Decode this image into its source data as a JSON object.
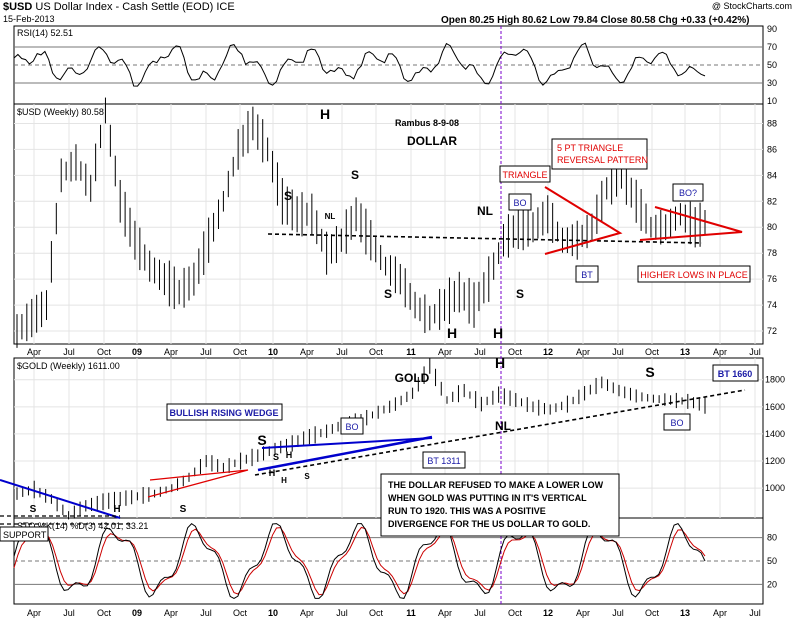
{
  "header": {
    "symbol": "$USD",
    "name": "US Dollar Index - Cash Settle (EOD)",
    "exchange": "ICE",
    "date": "15-Feb-2013",
    "copyright": "@ StockCharts.com",
    "quote": "Open 80.25   High 80.62   Low 79.84   Close 80.58   Chg +0.33 (+0.42%)"
  },
  "chart_data": [
    {
      "type": "line",
      "title": "RSI(14) 52.51",
      "y_ticks": [
        10,
        30,
        50,
        70,
        90
      ],
      "ylim": [
        10,
        90
      ],
      "levels": [
        30,
        50,
        70
      ],
      "series": [
        {
          "name": "RSI(14)",
          "last": 52.51
        }
      ]
    },
    {
      "type": "bar",
      "title": "$USD (Weekly) 80.58",
      "y_ticks": [
        72,
        74,
        76,
        78,
        80,
        82,
        84,
        86,
        88
      ],
      "ylim": [
        71,
        89.5
      ],
      "x_ticks": [
        "Apr",
        "Jul",
        "Oct",
        "09",
        "Apr",
        "Jul",
        "Oct",
        "10",
        "Apr",
        "Jul",
        "Oct",
        "11",
        "Apr",
        "Jul",
        "Oct",
        "12",
        "Apr",
        "Jul",
        "Oct",
        "13",
        "Apr",
        "Jul"
      ],
      "series": [
        {
          "name": "$USD (Weekly)",
          "last": 80.58,
          "approx_path": [
            [
              0,
              72
            ],
            [
              3,
              73
            ],
            [
              6,
              74
            ],
            [
              9,
              84
            ],
            [
              12,
              85
            ],
            [
              15,
              83
            ],
            [
              18,
              89
            ],
            [
              21,
              82
            ],
            [
              24,
              79
            ],
            [
              27,
              77
            ],
            [
              30,
              76
            ],
            [
              33,
              75
            ],
            [
              36,
              76
            ],
            [
              39,
              79
            ],
            [
              42,
              82
            ],
            [
              45,
              86
            ],
            [
              48,
              88
            ],
            [
              51,
              86
            ],
            [
              54,
              82
            ],
            [
              57,
              81
            ],
            [
              60,
              81
            ],
            [
              63,
              78
            ],
            [
              66,
              79
            ],
            [
              69,
              81
            ],
            [
              72,
              79
            ],
            [
              75,
              77
            ],
            [
              78,
              76
            ],
            [
              81,
              74
            ],
            [
              84,
              73
            ],
            [
              87,
              74
            ],
            [
              90,
              75
            ],
            [
              93,
              74
            ],
            [
              96,
              76
            ],
            [
              99,
              79
            ],
            [
              102,
              80
            ],
            [
              105,
              80
            ],
            [
              108,
              81
            ],
            [
              111,
              79
            ],
            [
              114,
              79
            ],
            [
              117,
              80
            ],
            [
              120,
              83
            ],
            [
              123,
              84
            ],
            [
              126,
              82
            ],
            [
              129,
              80
            ],
            [
              132,
              80
            ],
            [
              135,
              81
            ],
            [
              138,
              80
            ],
            [
              141,
              80.58
            ]
          ]
        }
      ],
      "annotations": [
        "Rambus 8-9-08",
        "DOLLAR",
        "TRIANGLE",
        "5 PT TRIANGLE",
        "REVERSAL PATTERN",
        "BO",
        "BO?",
        "BT",
        "HIGHER LOWS IN PLACE",
        "NL",
        "NL",
        "S",
        "S",
        "S",
        "S",
        "S",
        "H",
        "H",
        "H"
      ]
    },
    {
      "type": "bar",
      "title": "$GOLD (Weekly) 1611.00",
      "y_ticks": [
        1000,
        1200,
        1400,
        1600,
        1800
      ],
      "ylim": [
        780,
        1960
      ],
      "series": [
        {
          "name": "$GOLD (Weekly)",
          "last": 1611.0,
          "approx_path": [
            [
              0,
              960
            ],
            [
              3,
              990
            ],
            [
              6,
              920
            ],
            [
              9,
              800
            ],
            [
              12,
              870
            ],
            [
              15,
              900
            ],
            [
              18,
              920
            ],
            [
              21,
              940
            ],
            [
              24,
              960
            ],
            [
              27,
              1000
            ],
            [
              30,
              1080
            ],
            [
              33,
              1200
            ],
            [
              36,
              1150
            ],
            [
              39,
              1200
            ],
            [
              42,
              1240
            ],
            [
              45,
              1290
            ],
            [
              48,
              1330
            ],
            [
              51,
              1380
            ],
            [
              54,
              1420
            ],
            [
              57,
              1470
            ],
            [
              60,
              1500
            ],
            [
              63,
              1560
            ],
            [
              66,
              1620
            ],
            [
              69,
              1700
            ],
            [
              72,
              1900
            ],
            [
              75,
              1650
            ],
            [
              78,
              1720
            ],
            [
              81,
              1620
            ],
            [
              84,
              1690
            ],
            [
              87,
              1650
            ],
            [
              90,
              1600
            ],
            [
              93,
              1580
            ],
            [
              96,
              1620
            ],
            [
              99,
              1700
            ],
            [
              102,
              1780
            ],
            [
              105,
              1720
            ],
            [
              108,
              1680
            ],
            [
              111,
              1660
            ],
            [
              114,
              1650
            ],
            [
              117,
              1640
            ],
            [
              120,
              1611
            ]
          ]
        }
      ],
      "annotations": [
        "GOLD",
        "BULLISH RISING WEDGE",
        "BO",
        "BO",
        "BT 1311",
        "BT 1660",
        "NL",
        "S",
        "S",
        "S",
        "H",
        "H",
        "S",
        "H",
        "S",
        "SUPPORT"
      ],
      "note": "THE DOLLAR REFUSED TO MAKE A LOWER LOW WHEN GOLD WAS PUTTING IN IT'S VERTICAL RUN TO 1920. THIS WAS A POSITIVE DIVERGENCE FOR THE US DOLLAR TO GOLD."
    },
    {
      "type": "line",
      "title": "STO %K(14) %D(3) 42.01, 33.21",
      "y_ticks": [
        20,
        50,
        80
      ],
      "ylim": [
        0,
        100
      ],
      "levels": [
        20,
        50,
        80
      ],
      "series": [
        {
          "name": "%K(14)",
          "last": 42.01
        },
        {
          "name": "%D(3)",
          "last": 33.21
        }
      ]
    }
  ],
  "labels": {
    "rsi_title": "RSI(14) 52.51",
    "usd_title": "$USD (Weekly) 80.58",
    "gold_title": "$GOLD (Weekly) 1611.00",
    "sto_title": "STO %K(14) %D(3) 42.01, 33.21",
    "rambus": "Rambus  8-9-08",
    "dollar": "DOLLAR",
    "gold": "GOLD",
    "triangle": "TRIANGLE",
    "five_pt": "5 PT TRIANGLE",
    "reversal": "REVERSAL PATTERN",
    "bo": "BO",
    "bo_q": "BO?",
    "bt": "BT",
    "higher_lows": "HIGHER LOWS IN PLACE",
    "nl": "NL",
    "s": "S",
    "h": "H",
    "wedge": "BULLISH RISING WEDGE",
    "bt1311": "BT 1311",
    "bt1660": "BT 1660",
    "support": "SUPPORT",
    "note_lines": [
      "THE DOLLAR REFUSED TO MAKE A LOWER LOW",
      "WHEN GOLD WAS PUTTING IN IT'S VERTICAL",
      "RUN TO 1920. THIS WAS A POSITIVE",
      "DIVERGENCE FOR THE US DOLLAR TO GOLD."
    ]
  },
  "colors": {
    "price": "#000000",
    "pattern": "#e00000",
    "trendline": "#0000cc",
    "label_blue": "#1a1aa6",
    "highlight_line": "#7a00cc",
    "rsi_fill": "#3a8c3a",
    "d_line": "#cc0000"
  }
}
